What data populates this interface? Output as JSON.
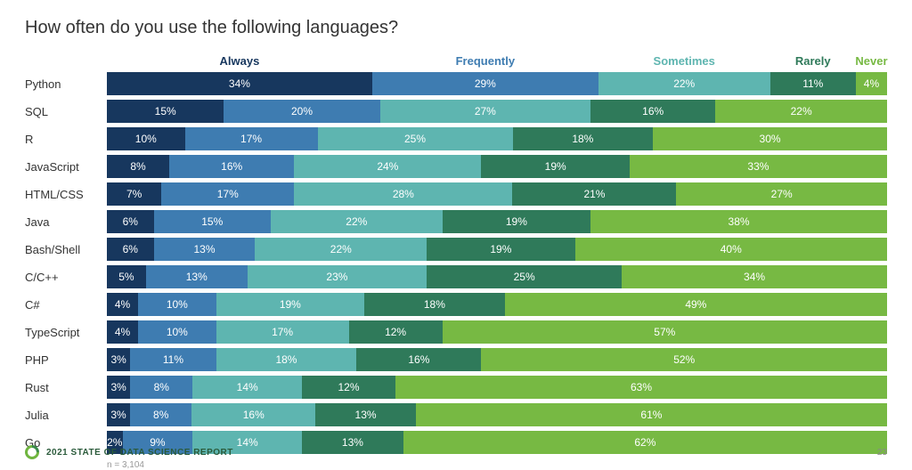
{
  "title": "How often do you use the following languages?",
  "footnote": "n = 3,104",
  "report_label": "2021 STATE OF DATA SCIENCE REPORT",
  "page_number": "23",
  "categories": [
    {
      "label": "Always",
      "color": "#17375e"
    },
    {
      "label": "Frequently",
      "color": "#3e7cb1"
    },
    {
      "label": "Sometimes",
      "color": "#5eb5b0"
    },
    {
      "label": "Rarely",
      "color": "#2f7a5a"
    },
    {
      "label": "Never",
      "color": "#77b943"
    }
  ],
  "header_widths": [
    34,
    29,
    22,
    11,
    4
  ],
  "rows": [
    {
      "label": "Python",
      "values": [
        34,
        29,
        22,
        11,
        4
      ]
    },
    {
      "label": "SQL",
      "values": [
        15,
        20,
        27,
        16,
        22
      ]
    },
    {
      "label": "R",
      "values": [
        10,
        17,
        25,
        18,
        30
      ]
    },
    {
      "label": "JavaScript",
      "values": [
        8,
        16,
        24,
        19,
        33
      ]
    },
    {
      "label": "HTML/CSS",
      "values": [
        7,
        17,
        28,
        21,
        27
      ]
    },
    {
      "label": "Java",
      "values": [
        6,
        15,
        22,
        19,
        38
      ]
    },
    {
      "label": "Bash/Shell",
      "values": [
        6,
        13,
        22,
        19,
        40
      ]
    },
    {
      "label": "C/C++",
      "values": [
        5,
        13,
        23,
        25,
        34
      ]
    },
    {
      "label": "C#",
      "values": [
        4,
        10,
        19,
        18,
        49
      ]
    },
    {
      "label": "TypeScript",
      "values": [
        4,
        10,
        17,
        12,
        57
      ]
    },
    {
      "label": "PHP",
      "values": [
        3,
        11,
        18,
        16,
        52
      ]
    },
    {
      "label": "Rust",
      "values": [
        3,
        8,
        14,
        12,
        63
      ]
    },
    {
      "label": "Julia",
      "values": [
        3,
        8,
        16,
        13,
        61
      ]
    },
    {
      "label": "Go",
      "values": [
        2,
        9,
        14,
        13,
        62
      ]
    }
  ],
  "style": {
    "title_fontsize": 20,
    "row_label_fontsize": 13,
    "seg_label_fontsize": 12,
    "background_color": "#ffffff",
    "text_color": "#333333"
  }
}
